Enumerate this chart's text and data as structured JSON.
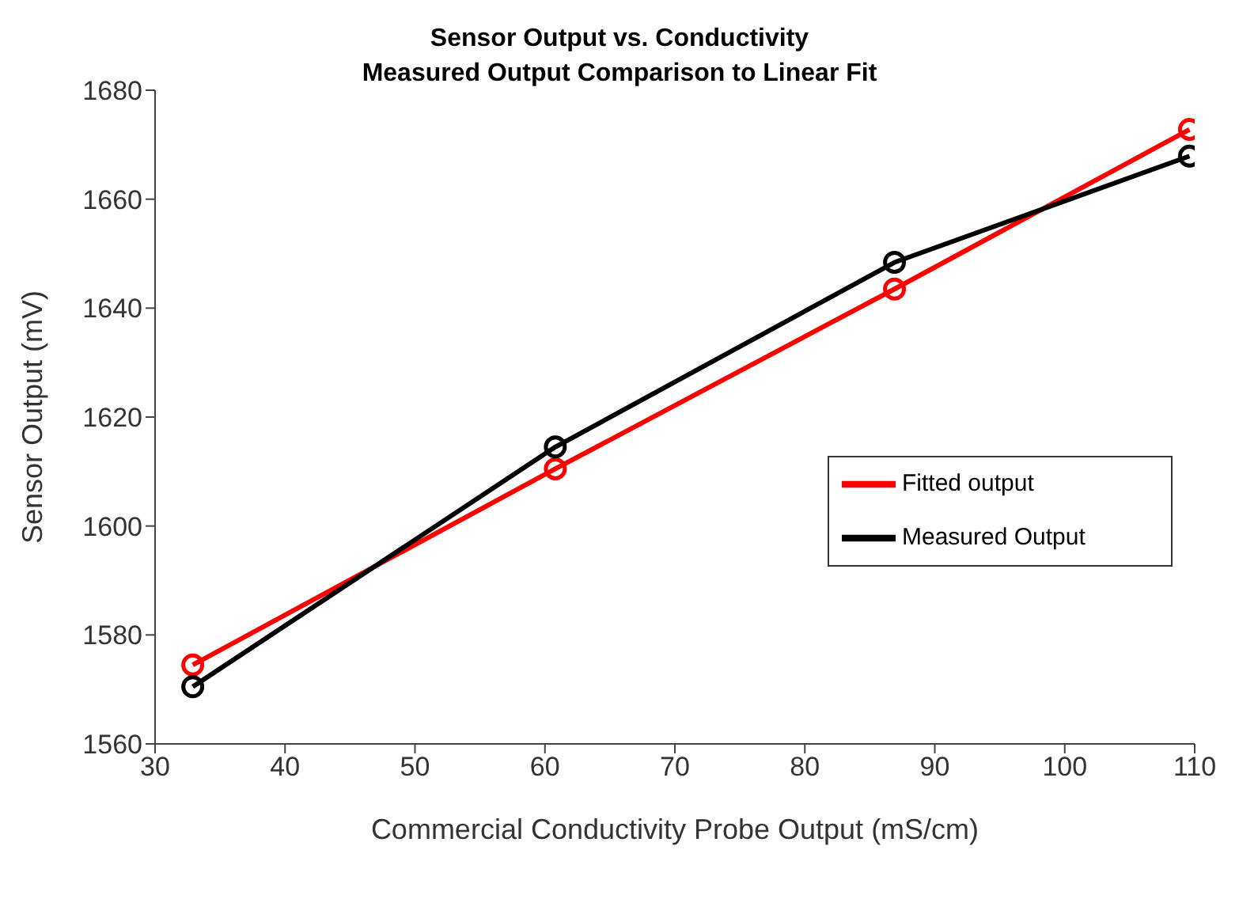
{
  "chart_data": {
    "type": "line",
    "title": "Sensor Output vs. Conductivity\nMeasured Output Comparison to Linear Fit",
    "xlabel": "Commercial Conductivity Probe Output (mS/cm)",
    "ylabel": "Sensor Output (mV)",
    "x": [
      32.9,
      60.8,
      86.9,
      109.6
    ],
    "series": [
      {
        "name": "Fitted output",
        "color": "#ff0000",
        "values": [
          1574.5,
          1610.5,
          1643.5,
          1672.8
        ]
      },
      {
        "name": "Measured Output",
        "color": "#000000",
        "values": [
          1570.5,
          1614.5,
          1648.4,
          1667.9
        ]
      }
    ],
    "xlim": [
      30,
      110
    ],
    "xticks": [
      30,
      40,
      50,
      60,
      70,
      80,
      90,
      100,
      110
    ],
    "ylim": [
      1560,
      1680
    ],
    "yticks": [
      1560,
      1580,
      1600,
      1620,
      1640,
      1660,
      1680
    ],
    "grid": false,
    "legend": "right",
    "marker": "circle",
    "line_style": "solid"
  }
}
